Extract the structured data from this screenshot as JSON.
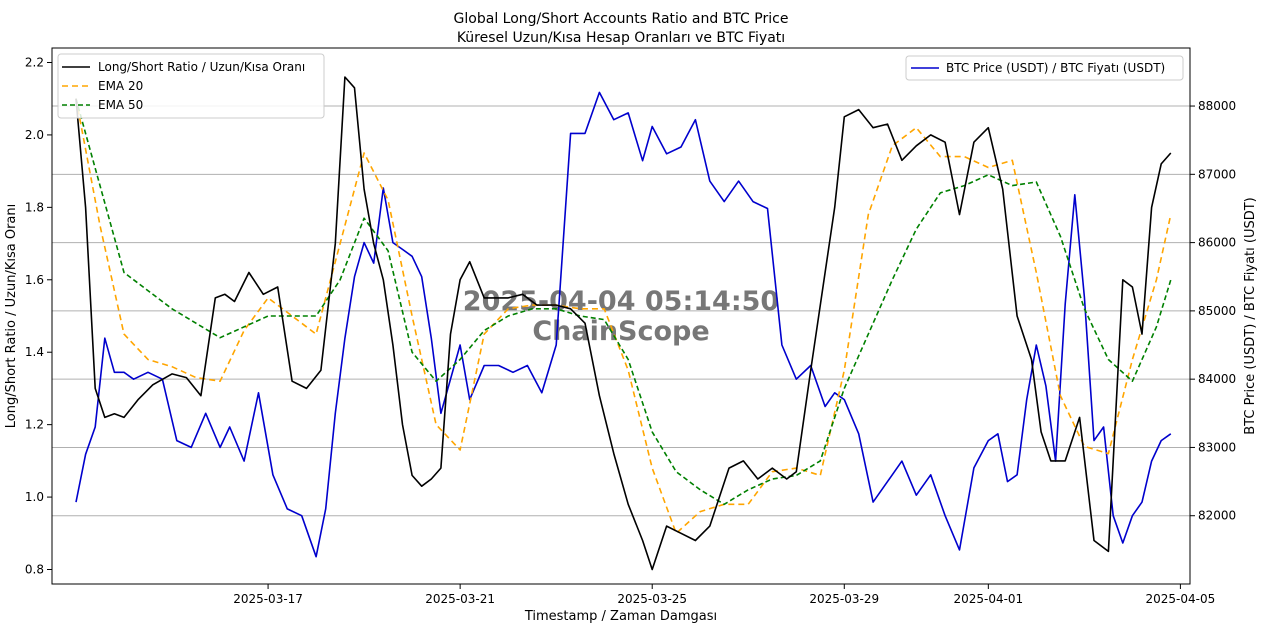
{
  "chart_data": {
    "type": "line",
    "title": "Global Long/Short Accounts Ratio and BTC Price",
    "subtitle": "Küresel Uzun/Kısa Hesap Oranları ve BTC Fiyatı",
    "xlabel": "Timestamp / Zaman Damgası",
    "ylabel_left": "Long/Short Ratio / Uzun/Kısa Oranı",
    "ylabel_right": "BTC Price (USDT) / BTC Fiyatı (USDT)",
    "x_tick_labels": [
      "2025-03-17",
      "2025-03-21",
      "2025-03-25",
      "2025-03-29",
      "2025-04-01",
      "2025-04-05"
    ],
    "x_tick_days": [
      4,
      8,
      12,
      16,
      19,
      23
    ],
    "x_start_date": "2025-03-13",
    "xlim_days": [
      -0.5,
      23.2
    ],
    "ylim_left": [
      0.76,
      2.24
    ],
    "y_ticks_left": [
      "0.8",
      "1.0",
      "1.2",
      "1.4",
      "1.6",
      "1.8",
      "2.0",
      "2.2"
    ],
    "ylim_right": [
      81000,
      88850
    ],
    "y_ticks_right": [
      "82000",
      "83000",
      "84000",
      "85000",
      "86000",
      "87000",
      "88000"
    ],
    "watermark": {
      "line1": "2025-04-04 05:14:50",
      "line2": "ChainScope"
    },
    "legend_left": [
      "Long/Short Ratio / Uzun/Kısa Oranı",
      "EMA 20",
      "EMA 50"
    ],
    "legend_right": [
      "BTC Price (USDT) / BTC Fiyatı (USDT)"
    ],
    "series": [
      {
        "name": "Long/Short Ratio / Uzun/Kısa Oranı",
        "axis": "left",
        "color": "#000000",
        "dash": "",
        "x": [
          0,
          0.2,
          0.4,
          0.6,
          0.8,
          1,
          1.3,
          1.6,
          2,
          2.3,
          2.6,
          2.9,
          3.1,
          3.3,
          3.6,
          3.9,
          4.2,
          4.5,
          4.8,
          5.1,
          5.4,
          5.6,
          5.8,
          6,
          6.2,
          6.4,
          6.6,
          6.8,
          7,
          7.2,
          7.4,
          7.6,
          7.8,
          8,
          8.2,
          8.5,
          8.8,
          9,
          9.3,
          9.6,
          10,
          10.3,
          10.6,
          10.9,
          11.2,
          11.5,
          11.8,
          12,
          12.3,
          12.6,
          12.9,
          13.2,
          13.6,
          13.9,
          14.2,
          14.5,
          14.8,
          15,
          15.3,
          15.6,
          15.8,
          16,
          16.3,
          16.6,
          16.9,
          17.2,
          17.5,
          17.8,
          18.1,
          18.4,
          18.7,
          19,
          19.3,
          19.6,
          19.9,
          20.1,
          20.3,
          20.6,
          20.9,
          21.2,
          21.5,
          21.8,
          22,
          22.2,
          22.4,
          22.6,
          22.8
        ],
        "y": [
          2.1,
          1.8,
          1.3,
          1.22,
          1.23,
          1.22,
          1.27,
          1.31,
          1.34,
          1.33,
          1.28,
          1.55,
          1.56,
          1.54,
          1.62,
          1.56,
          1.58,
          1.32,
          1.3,
          1.35,
          1.7,
          2.16,
          2.13,
          1.85,
          1.7,
          1.6,
          1.42,
          1.2,
          1.06,
          1.03,
          1.05,
          1.08,
          1.45,
          1.6,
          1.65,
          1.55,
          1.55,
          1.55,
          1.56,
          1.53,
          1.53,
          1.52,
          1.48,
          1.28,
          1.12,
          0.98,
          0.88,
          0.8,
          0.92,
          0.9,
          0.88,
          0.92,
          1.08,
          1.1,
          1.05,
          1.08,
          1.05,
          1.07,
          1.35,
          1.62,
          1.8,
          2.05,
          2.07,
          2.02,
          2.03,
          1.93,
          1.97,
          2.0,
          1.98,
          1.78,
          1.98,
          2.02,
          1.85,
          1.5,
          1.38,
          1.18,
          1.1,
          1.1,
          1.22,
          0.88,
          0.85,
          1.6,
          1.58,
          1.45,
          1.8,
          1.92,
          1.95
        ]
      },
      {
        "name": "EMA 20",
        "axis": "left",
        "color": "#FFA500",
        "dash": "6 4",
        "x": [
          0,
          0.5,
          1,
          1.5,
          2,
          2.5,
          3,
          3.5,
          4,
          4.5,
          5,
          5.5,
          6,
          6.5,
          7,
          7.5,
          8,
          8.5,
          9,
          9.5,
          10,
          10.5,
          11,
          11.5,
          12,
          12.5,
          13,
          13.5,
          14,
          14.5,
          15,
          15.5,
          16,
          16.5,
          17,
          17.5,
          18,
          18.5,
          19,
          19.5,
          20,
          20.5,
          21,
          21.5,
          22,
          22.5,
          22.8
        ],
        "y": [
          2.1,
          1.75,
          1.45,
          1.38,
          1.36,
          1.33,
          1.32,
          1.46,
          1.55,
          1.5,
          1.45,
          1.7,
          1.95,
          1.82,
          1.5,
          1.2,
          1.13,
          1.45,
          1.52,
          1.53,
          1.53,
          1.52,
          1.52,
          1.35,
          1.08,
          0.9,
          0.96,
          0.98,
          0.98,
          1.07,
          1.08,
          1.06,
          1.35,
          1.78,
          1.97,
          2.02,
          1.94,
          1.94,
          1.91,
          1.93,
          1.62,
          1.28,
          1.14,
          1.12,
          1.38,
          1.6,
          1.78
        ]
      },
      {
        "name": "EMA 50",
        "axis": "left",
        "color": "#008000",
        "dash": "5 3",
        "x": [
          0,
          1,
          2,
          3,
          4,
          5,
          5.5,
          6,
          6.5,
          7,
          7.5,
          8,
          8.5,
          9,
          9.5,
          10,
          10.5,
          11,
          11.5,
          12,
          12.5,
          13,
          13.5,
          14,
          14.5,
          15,
          15.5,
          16,
          16.5,
          17,
          17.5,
          18,
          18.5,
          19,
          19.5,
          20,
          20.5,
          21,
          21.5,
          22,
          22.5,
          22.8
        ],
        "y": [
          2.1,
          1.62,
          1.52,
          1.44,
          1.5,
          1.5,
          1.6,
          1.77,
          1.68,
          1.4,
          1.32,
          1.38,
          1.46,
          1.5,
          1.52,
          1.52,
          1.5,
          1.49,
          1.38,
          1.18,
          1.07,
          1.02,
          0.98,
          1.02,
          1.05,
          1.06,
          1.1,
          1.3,
          1.45,
          1.6,
          1.74,
          1.84,
          1.86,
          1.89,
          1.86,
          1.87,
          1.72,
          1.52,
          1.38,
          1.32,
          1.47,
          1.6
        ]
      },
      {
        "name": "BTC Price (USDT) / BTC Fiyatı (USDT)",
        "axis": "right",
        "color": "#0000CD",
        "dash": "",
        "x": [
          0,
          0.2,
          0.4,
          0.6,
          0.8,
          1,
          1.2,
          1.5,
          1.8,
          2.1,
          2.4,
          2.7,
          3.0,
          3.2,
          3.5,
          3.8,
          4.1,
          4.4,
          4.7,
          5.0,
          5.2,
          5.4,
          5.6,
          5.8,
          6.0,
          6.2,
          6.4,
          6.6,
          6.8,
          7.0,
          7.2,
          7.4,
          7.6,
          7.8,
          8.0,
          8.2,
          8.5,
          8.8,
          9.1,
          9.4,
          9.7,
          10.0,
          10.3,
          10.6,
          10.9,
          11.2,
          11.5,
          11.8,
          12.0,
          12.3,
          12.6,
          12.9,
          13.2,
          13.5,
          13.8,
          14.1,
          14.4,
          14.7,
          15.0,
          15.3,
          15.6,
          15.8,
          16.0,
          16.3,
          16.6,
          16.9,
          17.2,
          17.5,
          17.8,
          18.1,
          18.4,
          18.7,
          19.0,
          19.2,
          19.4,
          19.6,
          19.8,
          20.0,
          20.2,
          20.4,
          20.6,
          20.8,
          21.0,
          21.2,
          21.4,
          21.6,
          21.8,
          22.0,
          22.2,
          22.4,
          22.6,
          22.8
        ],
        "y": [
          82200,
          82900,
          83300,
          84600,
          84100,
          84100,
          84000,
          84100,
          84000,
          83100,
          83000,
          83500,
          83000,
          83300,
          82800,
          83800,
          82600,
          82100,
          82000,
          81400,
          82100,
          83500,
          84600,
          85500,
          86000,
          85700,
          86800,
          86000,
          85900,
          85800,
          85500,
          84600,
          83500,
          84000,
          84500,
          83700,
          84200,
          84200,
          84100,
          84200,
          83800,
          84500,
          87600,
          87600,
          88200,
          87800,
          87900,
          87200,
          87700,
          87300,
          87400,
          87800,
          86900,
          86600,
          86900,
          86600,
          86500,
          84500,
          84000,
          84200,
          83600,
          83800,
          83700,
          83200,
          82200,
          82500,
          82800,
          82300,
          82600,
          82000,
          81500,
          82700,
          83100,
          83200,
          82500,
          82600,
          83700,
          84500,
          83900,
          82800,
          85100,
          86700,
          85200,
          83100,
          83300,
          82000,
          81600,
          82000,
          82200,
          82800,
          83100,
          83200
        ]
      }
    ]
  }
}
